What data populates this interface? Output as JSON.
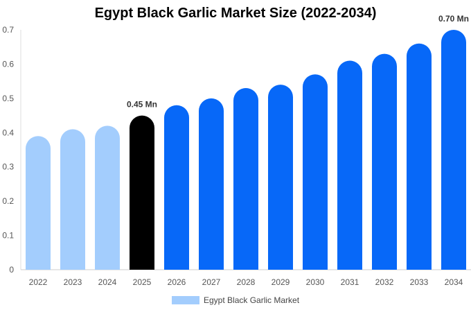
{
  "chart_data": {
    "type": "bar",
    "title": "Egypt Black Garlic Market Size (2022-2034)",
    "categories": [
      "2022",
      "2023",
      "2024",
      "2025",
      "2026",
      "2027",
      "2028",
      "2029",
      "2030",
      "2031",
      "2032",
      "2033",
      "2034"
    ],
    "series": [
      {
        "name": "Egypt Black Garlic Market",
        "values": [
          0.39,
          0.41,
          0.42,
          0.45,
          0.48,
          0.5,
          0.53,
          0.54,
          0.57,
          0.61,
          0.63,
          0.66,
          0.7
        ]
      }
    ],
    "ylim": [
      0,
      0.7
    ],
    "yticks": [
      "0",
      "0.1",
      "0.2",
      "0.3",
      "0.4",
      "0.5",
      "0.6",
      "0.7"
    ],
    "data_labels": [
      {
        "index": 3,
        "text": "0.45 Mn"
      },
      {
        "index": 12,
        "text": "0.70 Mn"
      }
    ],
    "bar_colors": {
      "historic": "#a3cdfd",
      "base_year": "#000000",
      "forecast": "#0768f8"
    },
    "base_year_index": 3,
    "grid": false,
    "legend_position": "bottom-center",
    "legend_color": "#a3cdfd"
  }
}
